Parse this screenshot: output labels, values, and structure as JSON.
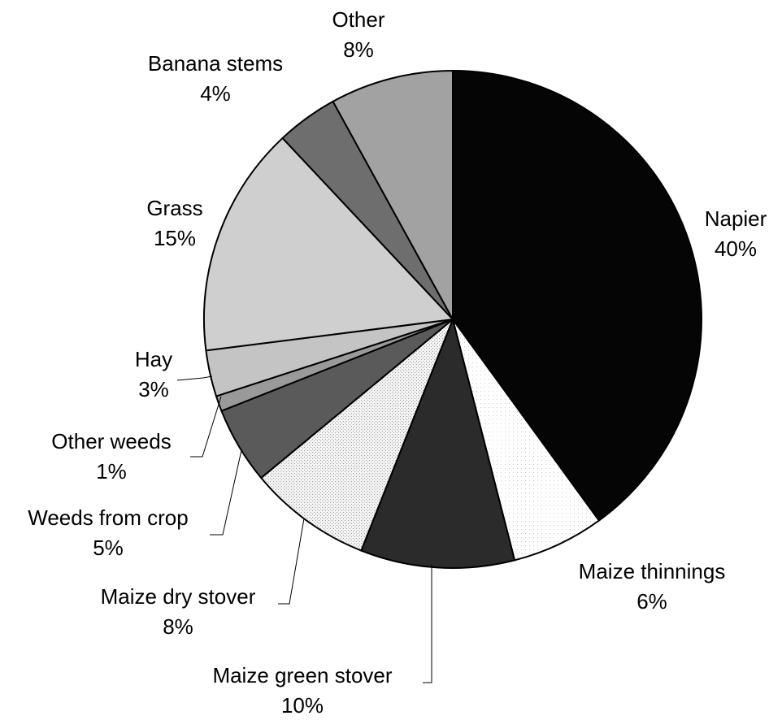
{
  "chart_data": {
    "type": "pie",
    "title": "",
    "start_angle_deg": 0,
    "direction": "clockwise",
    "slices": [
      {
        "label": "Napier",
        "value": 40,
        "value_label": "40%",
        "fill": "#050505",
        "pattern": "solid"
      },
      {
        "label": "Maize thinnings",
        "value": 6,
        "value_label": "6%",
        "fill": "#ffffff",
        "pattern": "sparse-dots"
      },
      {
        "label": "Maize green stover",
        "value": 10,
        "value_label": "10%",
        "fill": "#2b2b2b",
        "pattern": "dark-stipple"
      },
      {
        "label": "Maize dry stover",
        "value": 8,
        "value_label": "8%",
        "fill": "#ececec",
        "pattern": "light-stipple"
      },
      {
        "label": "Weeds from crop",
        "value": 5,
        "value_label": "5%",
        "fill": "#5a5a5a",
        "pattern": "medium-stipple"
      },
      {
        "label": "Other weeds",
        "value": 1,
        "value_label": "1%",
        "fill": "#9a9a9a",
        "pattern": "stipple"
      },
      {
        "label": "Hay",
        "value": 3,
        "value_label": "3%",
        "fill": "#c4c4c4",
        "pattern": "stipple"
      },
      {
        "label": "Grass",
        "value": 15,
        "value_label": "15%",
        "fill": "#cfcfcf",
        "pattern": "fine-stipple"
      },
      {
        "label": "Banana stems",
        "value": 4,
        "value_label": "4%",
        "fill": "#6e6e6e",
        "pattern": "stipple"
      },
      {
        "label": "Other",
        "value": 8,
        "value_label": "8%",
        "fill": "#a2a2a2",
        "pattern": "stipple"
      }
    ]
  }
}
